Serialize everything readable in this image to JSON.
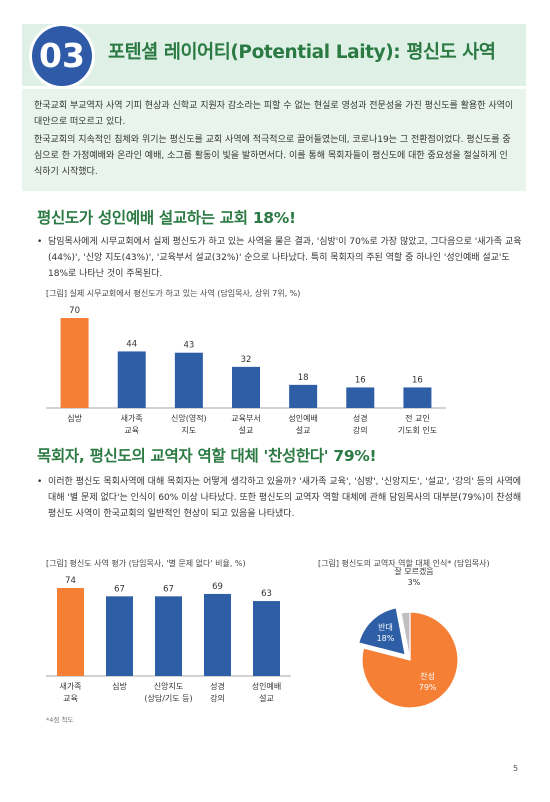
{
  "header": {
    "number": "03",
    "title": "포텐셜 레이어티(Potential Laity): 평신도 사역"
  },
  "intro": {
    "paragraphs": [
      "한국교회 부교역자 사역 기피 현상과 신학교 지원자 감소라는 피할 수 없는 현실로 영성과 전문성을 가진 평신도를 활용한 사역이 대안으로 떠오르고 있다.",
      "한국교회의 지속적인 침체와 위기는 평신도를 교회 사역에 적극적으로 끌어들였는데, 코로나19는 그 전환점이었다. 평신도를 중심으로 한 가정예배와 온라인 예배, 소그룹 활동이 빛을 발하면서다. 이를 통해 목회자들이 평신도에 대한 중요성을 절실하게 인식하기 시작했다."
    ]
  },
  "section1": {
    "title": "평신도가 성인예배 설교하는 교회 18%!",
    "bullet": "담임목사에게 시무교회에서 실제 평신도가 하고 있는 사역을 물은 결과, '심방'이 70%로 가장 많았고, 그다음으로 '새가족 교육(44%)', '신앙 지도(43%)', '교육부서 설교(32%)' 순으로 나타났다. 특히 목회자의 주된 역할 중 하나인 '성인예배 설교'도 18%로 나타난 것이 주목된다."
  },
  "section2": {
    "title": "목회자, 평신도의 교역자 역할 대체 '찬성한다' 79%!",
    "bullet": "이러한 평신도 목회사역에 대해 목회자는 어떻게 생각하고 있을까? '새가족 교육', '심방', '신앙지도', '설교', '강의' 등의 사역에 대해 '별 문제 없다'는 인식이 60% 이상 나타났다. 또한 평신도의 교역자 역할 대체에 관해 담임목사의 대부분(79%)이 찬성해 평신도 사역이 한국교회의 일반적인 현상이 되고 있음을 나타냈다."
  },
  "colors": {
    "accent_green": "#2b7a43",
    "badge_blue": "#2e5aa8",
    "bar_blue": "#2e5ea6",
    "bar_orange": "#f47f35",
    "pie_gray": "#bfbfbf"
  },
  "chart_data": [
    {
      "type": "bar",
      "title": "[그림] 실제 시무교회에서 평신도가 하고 있는 사역 (담임목사, 상위 7위, %)",
      "categories": [
        [
          "심방"
        ],
        [
          "새가족",
          "교육"
        ],
        [
          "신앙(영적)",
          "지도"
        ],
        [
          "교육부서",
          "설교"
        ],
        [
          "성인예배",
          "설교"
        ],
        [
          "성경",
          "강의"
        ],
        [
          "전 교인",
          "기도회 인도"
        ]
      ],
      "values": [
        70,
        44,
        43,
        32,
        18,
        16,
        16
      ],
      "highlight_index": 0,
      "ylim": [
        0,
        70
      ]
    },
    {
      "type": "bar",
      "title": "[그림] 평신도 사역 평가 (담임목사, '별 문제 없다' 비율,  %)",
      "categories": [
        [
          "새가족",
          "교육"
        ],
        [
          "심방"
        ],
        [
          "신앙지도",
          "(상담/기도 등)"
        ],
        [
          "성경",
          "강의"
        ],
        [
          "성인예배",
          "설교"
        ]
      ],
      "values": [
        74,
        67,
        67,
        69,
        63
      ],
      "highlight_index": 0,
      "ylim": [
        0,
        74
      ],
      "footnote": "*4점 척도"
    },
    {
      "type": "pie",
      "title": "[그림] 평신도의 교역자 역할 대체 인식* (담임목사)",
      "slices": [
        {
          "label": "찬성",
          "value": 79,
          "value_label": "79%"
        },
        {
          "label": "반대",
          "value": 18,
          "value_label": "18%"
        },
        {
          "label": "잘 모르겠음",
          "value": 3,
          "value_label": "3%"
        }
      ]
    }
  ],
  "page_number": "5"
}
